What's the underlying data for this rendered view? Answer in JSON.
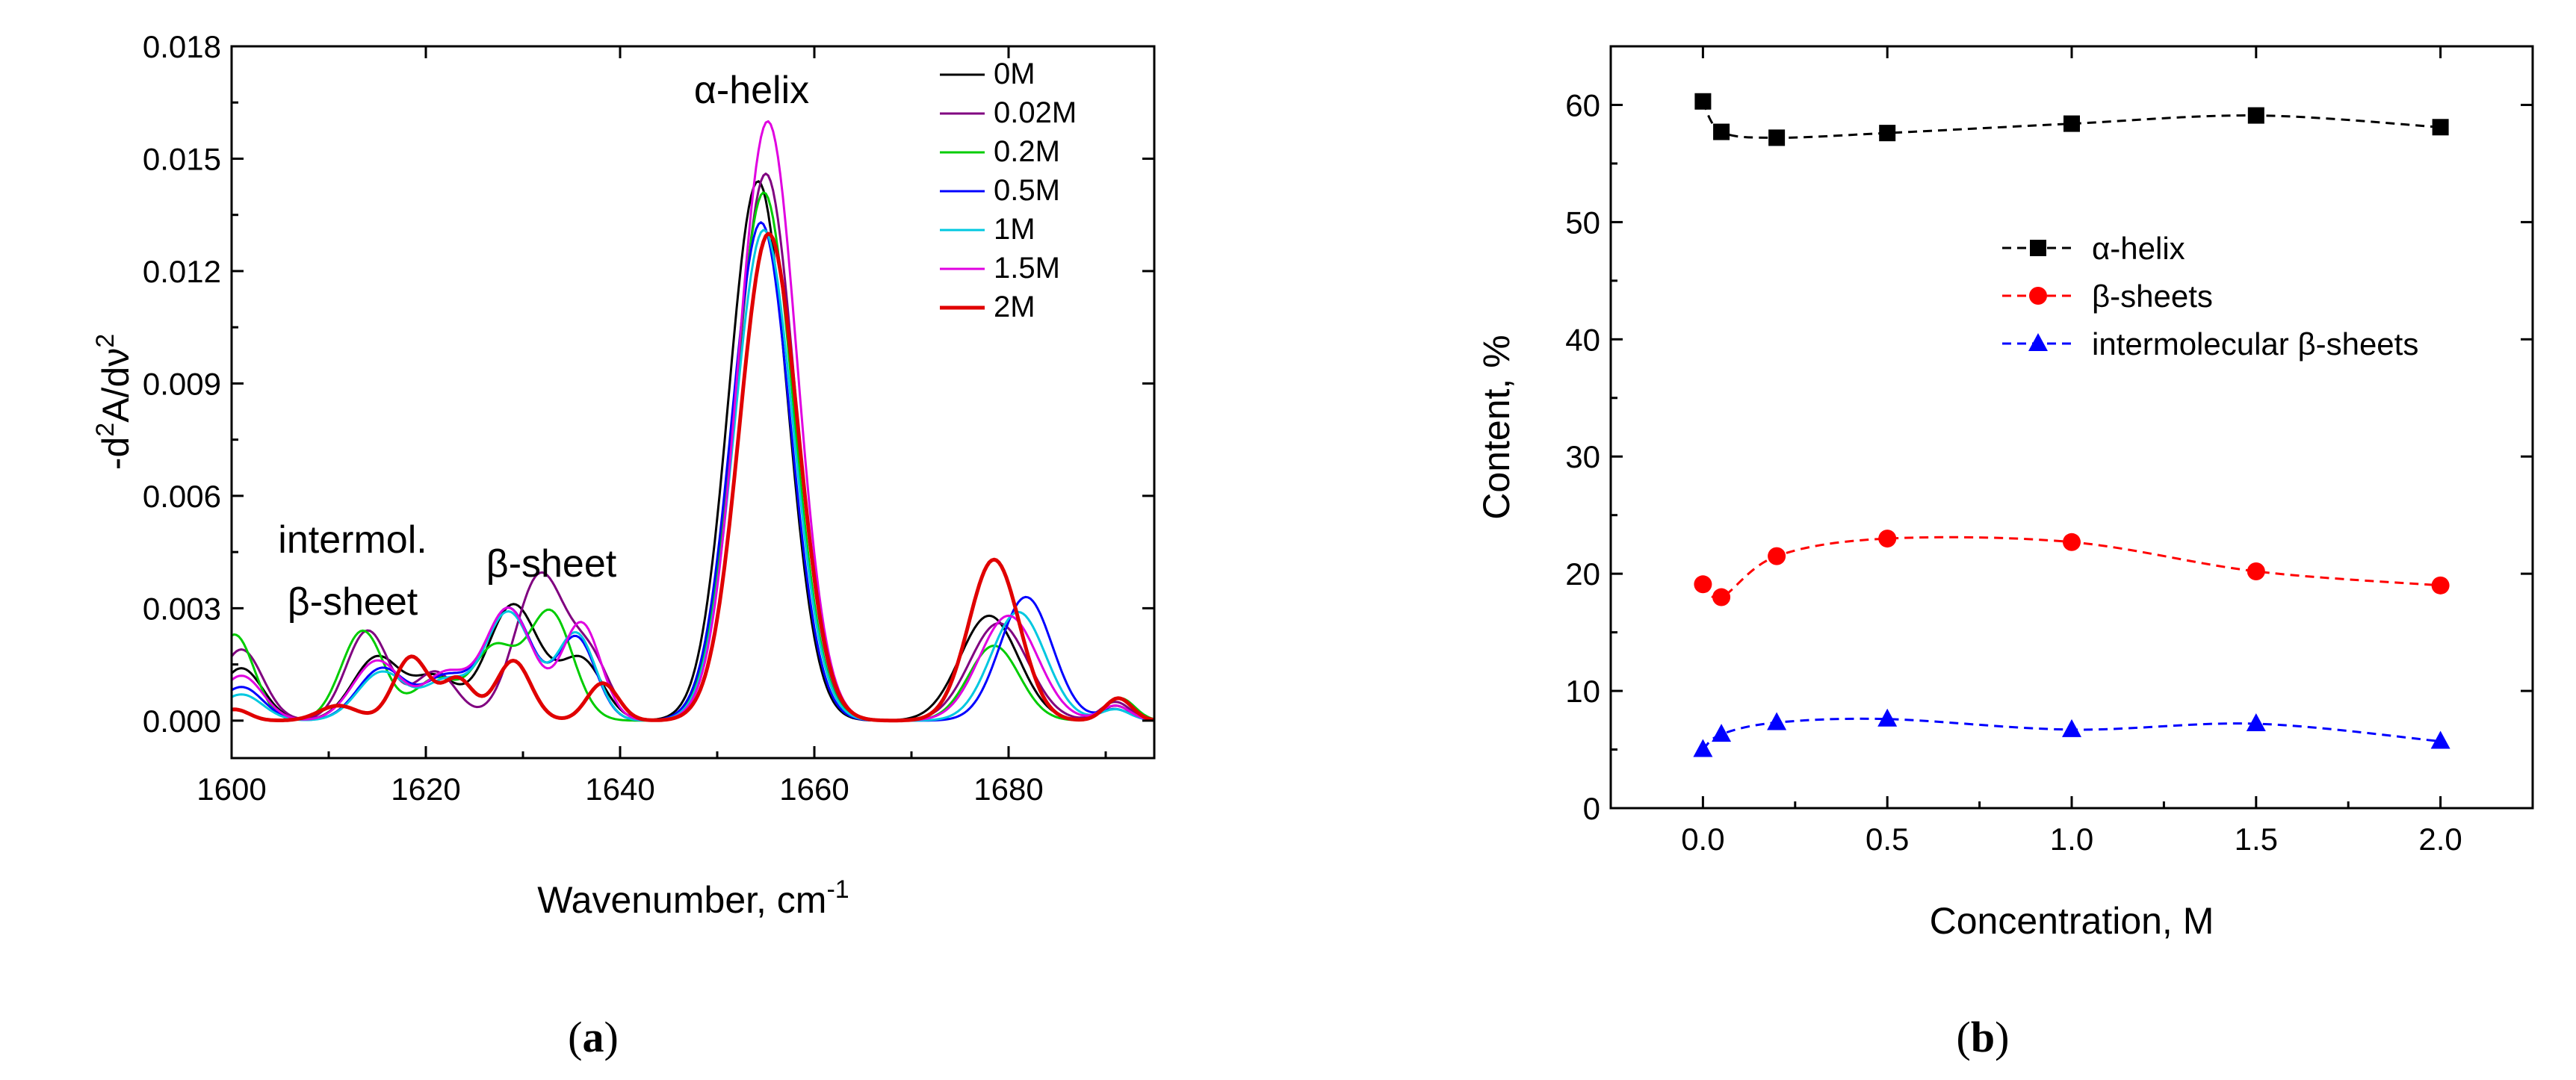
{
  "chart_data": [
    {
      "type": "line",
      "panel": "(a)",
      "panel_letter": "a",
      "title": "",
      "xlabel": "Wavenumber, cm",
      "xlabel_sup": "-1",
      "ylabel": "-d2A/dν2",
      "ylabel_parts": [
        "-d",
        "2",
        "A/dν",
        "2"
      ],
      "xlim": [
        1600,
        1695
      ],
      "ylim": [
        -0.001,
        0.018
      ],
      "xticks": [
        1600,
        1620,
        1640,
        1660,
        1680
      ],
      "xtick_labels": [
        "1600",
        "1620",
        "1640",
        "1660",
        "1680"
      ],
      "yticks": [
        0.0,
        0.003,
        0.006,
        0.009,
        0.012,
        0.015,
        0.018
      ],
      "ytick_labels": [
        "0.000",
        "0.003",
        "0.006",
        "0.009",
        "0.012",
        "0.015",
        "0.018"
      ],
      "legend_position": "top-right",
      "annotations": [
        {
          "text": "α-helix"
        },
        {
          "text": "β-sheet"
        },
        {
          "text": "intermol."
        },
        {
          "text": "β-sheet"
        }
      ],
      "series": [
        {
          "name": "0M",
          "color": "#000000",
          "peaks": [
            [
              1601,
              0.0014,
              2.2
            ],
            [
              1615,
              0.0017,
              2.5
            ],
            [
              1621,
              0.0011,
              2.2
            ],
            [
              1629,
              0.0031,
              2.7
            ],
            [
              1636,
              0.0016,
              2.2
            ],
            [
              1654.2,
              0.0144,
              3.0
            ],
            [
              1678,
              0.0028,
              3.0
            ],
            [
              1691,
              0.0004,
              1.5
            ]
          ]
        },
        {
          "name": "0.02M",
          "color": "#800080",
          "peaks": [
            [
              1601,
              0.0019,
              2.2
            ],
            [
              1614,
              0.0024,
              2.2
            ],
            [
              1621,
              0.0013,
              2.2
            ],
            [
              1631.8,
              0.0039,
              2.6
            ],
            [
              1637,
              0.0015,
              2.0
            ],
            [
              1655,
              0.0146,
              3.0
            ],
            [
              1679,
              0.0026,
              3.0
            ],
            [
              1691,
              0.0005,
              1.5
            ]
          ]
        },
        {
          "name": "0.2M",
          "color": "#00cc00",
          "peaks": [
            [
              1600.3,
              0.0023,
              2.0
            ],
            [
              1613.5,
              0.0024,
              2.2
            ],
            [
              1621,
              0.0011,
              2.2
            ],
            [
              1627,
              0.0019,
              2.2
            ],
            [
              1632.8,
              0.0029,
              2.3
            ],
            [
              1654.8,
              0.0141,
              3.0
            ],
            [
              1678.5,
              0.002,
              2.6
            ],
            [
              1691.5,
              0.0006,
              1.5
            ]
          ]
        },
        {
          "name": "0.5M",
          "color": "#0000ff",
          "peaks": [
            [
              1601,
              0.0009,
              2.2
            ],
            [
              1615.5,
              0.0014,
              2.5
            ],
            [
              1622,
              0.0011,
              2.2
            ],
            [
              1628.5,
              0.003,
              2.5
            ],
            [
              1635.5,
              0.0022,
              2.0
            ],
            [
              1654.5,
              0.0133,
              3.0
            ],
            [
              1681.8,
              0.0033,
              2.7
            ],
            [
              1691,
              0.0003,
              1.5
            ]
          ]
        },
        {
          "name": "1M",
          "color": "#00c8e0",
          "peaks": [
            [
              1601,
              0.0007,
              2.2
            ],
            [
              1615.5,
              0.0013,
              2.5
            ],
            [
              1622,
              0.001,
              2.2
            ],
            [
              1628.5,
              0.0029,
              2.5
            ],
            [
              1635.5,
              0.0023,
              2.0
            ],
            [
              1654.8,
              0.0131,
              3.0
            ],
            [
              1681,
              0.0029,
              2.8
            ],
            [
              1691,
              0.0003,
              1.5
            ]
          ]
        },
        {
          "name": "1.5M",
          "color": "#e000e0",
          "peaks": [
            [
              1601,
              0.0012,
              2.2
            ],
            [
              1615,
              0.0016,
              2.5
            ],
            [
              1622,
              0.0012,
              2.2
            ],
            [
              1628.5,
              0.003,
              2.5
            ],
            [
              1636,
              0.0026,
              2.0
            ],
            [
              1655.2,
              0.016,
              3.0
            ],
            [
              1680,
              0.0028,
              3.0
            ],
            [
              1691,
              0.0004,
              1.5
            ]
          ]
        },
        {
          "name": "2M",
          "color": "#e00000",
          "peaks": [
            [
              1600.3,
              0.0003,
              1.5
            ],
            [
              1611,
              0.0004,
              2.0
            ],
            [
              1618.5,
              0.0017,
              1.8
            ],
            [
              1623.3,
              0.0011,
              1.6
            ],
            [
              1629,
              0.0016,
              1.8
            ],
            [
              1638.2,
              0.001,
              1.6
            ],
            [
              1655.3,
              0.013,
              3.0
            ],
            [
              1678.5,
              0.0043,
              2.6
            ],
            [
              1691.3,
              0.0006,
              1.4
            ]
          ]
        }
      ]
    },
    {
      "type": "scatter",
      "panel": "(b)",
      "panel_letter": "b",
      "title": "",
      "xlabel": "Concentration, M",
      "ylabel": "Content, %",
      "xlim": [
        -0.25,
        2.25
      ],
      "ylim": [
        0,
        65
      ],
      "xticks": [
        0.0,
        0.5,
        1.0,
        1.5,
        2.0
      ],
      "xtick_labels": [
        "0.0",
        "0.5",
        "1.0",
        "1.5",
        "2.0"
      ],
      "yticks": [
        0,
        10,
        20,
        30,
        40,
        50,
        60
      ],
      "ytick_labels": [
        "0",
        "10",
        "20",
        "30",
        "40",
        "50",
        "60"
      ],
      "legend_position": "center-right",
      "x": [
        0.0,
        0.05,
        0.2,
        0.5,
        1.0,
        1.5,
        2.0
      ],
      "series": [
        {
          "name": "α-helix",
          "color": "#000000",
          "marker": "square",
          "values": [
            60.3,
            57.7,
            57.2,
            57.6,
            58.4,
            59.1,
            58.1
          ]
        },
        {
          "name": "β-sheets",
          "color": "#ff0000",
          "marker": "circle",
          "values": [
            19.1,
            18.0,
            21.5,
            23.0,
            22.7,
            20.2,
            19.0
          ]
        },
        {
          "name": "intermolecular β-sheets",
          "color": "#0000ff",
          "marker": "triangle",
          "values": [
            5.0,
            6.3,
            7.3,
            7.6,
            6.7,
            7.2,
            5.7
          ]
        }
      ]
    }
  ]
}
